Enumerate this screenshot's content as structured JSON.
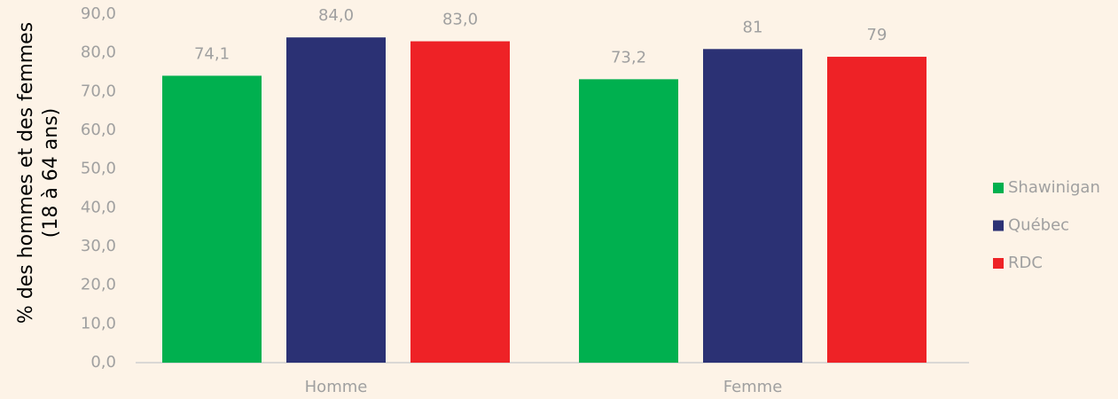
{
  "chart_data": {
    "type": "bar",
    "ylabel": [
      "% des hommes et des femmes",
      "(18 à 64 ans)"
    ],
    "categories": [
      "Homme",
      "Femme"
    ],
    "series": [
      {
        "name": "Shawinigan",
        "color": "#00b04f",
        "values": [
          74.1,
          73.2
        ],
        "value_labels": [
          "74,1",
          "73,2"
        ]
      },
      {
        "name": "Québec",
        "color": "#2b3174",
        "values": [
          84.0,
          81
        ],
        "value_labels": [
          "84,0",
          "81"
        ]
      },
      {
        "name": "RDC",
        "color": "#ee2226",
        "values": [
          83.0,
          79
        ],
        "value_labels": [
          "83,0",
          "79"
        ]
      }
    ],
    "ylim": [
      0,
      90
    ],
    "yticks": [
      {
        "value": 0,
        "label": "0,0"
      },
      {
        "value": 10,
        "label": "10,0"
      },
      {
        "value": 20,
        "label": "20,0"
      },
      {
        "value": 30,
        "label": "30,0"
      },
      {
        "value": 40,
        "label": "40,0"
      },
      {
        "value": 50,
        "label": "50,0"
      },
      {
        "value": 60,
        "label": "60,0"
      },
      {
        "value": 70,
        "label": "70,0"
      },
      {
        "value": 80,
        "label": "80,0"
      },
      {
        "value": 90,
        "label": "90,0"
      }
    ],
    "legend": "right"
  }
}
